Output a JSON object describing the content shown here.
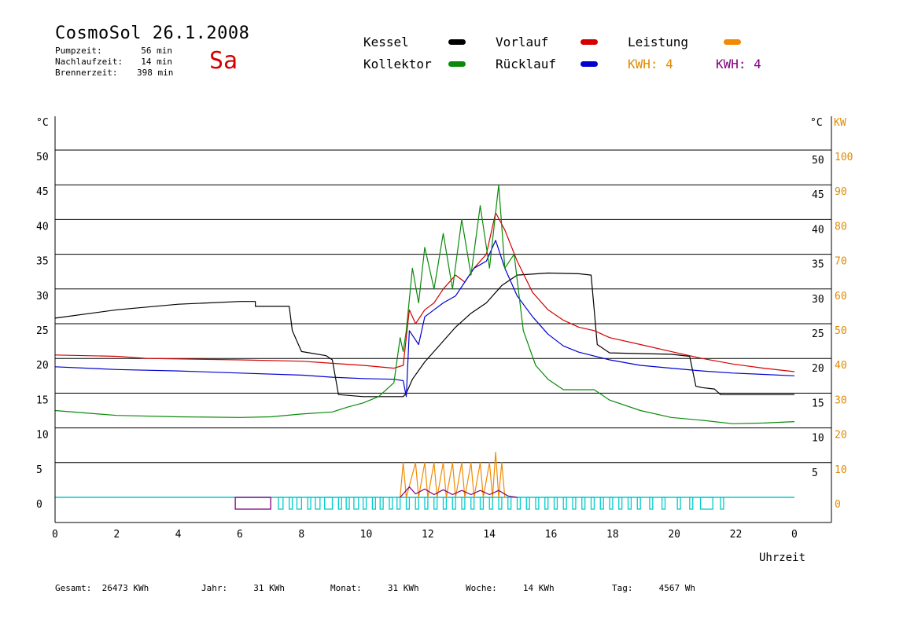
{
  "header": {
    "title": "CosmoSol 26.1.2008",
    "day": "Sa",
    "info": [
      {
        "label": "Pumpzeit:",
        "value": "56 min"
      },
      {
        "label": "Nachlaufzeit:",
        "value": "14 min"
      },
      {
        "label": "Brennerzeit:",
        "value": "398 min"
      }
    ]
  },
  "legend": {
    "kessel": "Kessel",
    "vorlauf": "Vorlauf",
    "leistung": "Leistung",
    "kollektor": "Kollektor",
    "ruecklauf": "Rücklauf",
    "kwh_orange": "KWH: 4",
    "kwh_purple": "KWH: 4"
  },
  "colors": {
    "kessel": "#000000",
    "vorlauf": "#d40000",
    "leistung": "#f08a00",
    "kollektor": "#0a8a0a",
    "ruecklauf": "#0000d0",
    "kwh_purple": "#800080",
    "pump": "#00cccc",
    "grid": "#000000",
    "kw_axis": "#e08a00"
  },
  "chart_data": {
    "type": "line",
    "xlabel": "Uhrzeit",
    "y_left_label": "°C",
    "y_right_label_c": "°C",
    "y_right_label_kw": "KW",
    "xlim": [
      0,
      24
    ],
    "ylim": [
      0,
      50
    ],
    "grid": true,
    "x_ticks": [
      "0",
      "2",
      "4",
      "6",
      "8",
      "10",
      "12",
      "14",
      "16",
      "18",
      "20",
      "22",
      "0"
    ],
    "y_ticks_left": [
      "0",
      "5",
      "10",
      "15",
      "20",
      "25",
      "30",
      "35",
      "40",
      "45",
      "50"
    ],
    "y_ticks_right_c": [
      "5",
      "10",
      "15",
      "20",
      "25",
      "30",
      "35",
      "40",
      "45",
      "50"
    ],
    "y_ticks_right_kw": [
      "0",
      "10",
      "20",
      "30",
      "40",
      "50",
      "60",
      "70",
      "80",
      "90",
      "100"
    ],
    "series": [
      {
        "name": "Kessel",
        "color": "#000000",
        "points": [
          [
            0,
            25.8
          ],
          [
            2,
            27
          ],
          [
            4,
            27.8
          ],
          [
            6,
            28.2
          ],
          [
            6.5,
            28.2
          ],
          [
            6.5,
            27.5
          ],
          [
            7.6,
            27.5
          ],
          [
            7.7,
            24
          ],
          [
            8,
            21
          ],
          [
            8.8,
            20.4
          ],
          [
            9,
            19.8
          ],
          [
            9.2,
            14.8
          ],
          [
            10,
            14.5
          ],
          [
            11.3,
            14.5
          ],
          [
            11.4,
            15
          ],
          [
            11.6,
            17
          ],
          [
            12,
            19.5
          ],
          [
            12.5,
            22
          ],
          [
            13,
            24.5
          ],
          [
            13.5,
            26.5
          ],
          [
            14,
            28
          ],
          [
            14.5,
            30.5
          ],
          [
            15,
            32
          ],
          [
            16,
            32.3
          ],
          [
            17,
            32.2
          ],
          [
            17.4,
            32
          ],
          [
            17.6,
            22
          ],
          [
            18,
            20.8
          ],
          [
            20,
            20.6
          ],
          [
            20.6,
            20.3
          ],
          [
            20.8,
            16
          ],
          [
            21,
            15.8
          ],
          [
            21.4,
            15.6
          ],
          [
            21.6,
            14.8
          ],
          [
            24,
            14.8
          ]
        ]
      },
      {
        "name": "Vorlauf",
        "color": "#d40000",
        "points": [
          [
            0,
            20.5
          ],
          [
            2,
            20.3
          ],
          [
            3,
            20
          ],
          [
            6,
            19.8
          ],
          [
            8,
            19.6
          ],
          [
            9,
            19.3
          ],
          [
            10,
            19
          ],
          [
            11,
            18.6
          ],
          [
            11.3,
            19
          ],
          [
            11.5,
            27
          ],
          [
            11.7,
            25
          ],
          [
            12,
            27
          ],
          [
            12.3,
            28
          ],
          [
            12.6,
            30
          ],
          [
            13,
            32
          ],
          [
            13.3,
            31
          ],
          [
            13.6,
            33
          ],
          [
            14,
            35
          ],
          [
            14.3,
            41
          ],
          [
            14.6,
            38.5
          ],
          [
            15,
            34
          ],
          [
            15.5,
            29.5
          ],
          [
            16,
            27
          ],
          [
            16.5,
            25.5
          ],
          [
            17,
            24.5
          ],
          [
            17.5,
            24
          ],
          [
            18,
            23
          ],
          [
            19,
            22
          ],
          [
            20,
            21
          ],
          [
            21,
            20
          ],
          [
            22,
            19.2
          ],
          [
            23,
            18.6
          ],
          [
            24,
            18.1
          ]
        ]
      },
      {
        "name": "Rücklauf",
        "color": "#0000d0",
        "points": [
          [
            0,
            18.8
          ],
          [
            2,
            18.4
          ],
          [
            4,
            18.2
          ],
          [
            6,
            17.9
          ],
          [
            8,
            17.6
          ],
          [
            9,
            17.3
          ],
          [
            10,
            17.1
          ],
          [
            11,
            17
          ],
          [
            11.3,
            16.8
          ],
          [
            11.4,
            14.5
          ],
          [
            11.5,
            24
          ],
          [
            11.8,
            22
          ],
          [
            12,
            26
          ],
          [
            12.3,
            27
          ],
          [
            12.6,
            28
          ],
          [
            13,
            29
          ],
          [
            13.3,
            31
          ],
          [
            13.6,
            33
          ],
          [
            14,
            34
          ],
          [
            14.3,
            37
          ],
          [
            14.6,
            33
          ],
          [
            15,
            29
          ],
          [
            15.5,
            26
          ],
          [
            16,
            23.5
          ],
          [
            16.5,
            21.8
          ],
          [
            17,
            20.9
          ],
          [
            18,
            19.8
          ],
          [
            19,
            19
          ],
          [
            20,
            18.6
          ],
          [
            21,
            18.2
          ],
          [
            22,
            17.9
          ],
          [
            23,
            17.7
          ],
          [
            24,
            17.5
          ]
        ]
      },
      {
        "name": "Kollektor",
        "color": "#0a8a0a",
        "points": [
          [
            0,
            12.5
          ],
          [
            2,
            11.8
          ],
          [
            4,
            11.6
          ],
          [
            6,
            11.5
          ],
          [
            7,
            11.6
          ],
          [
            8,
            12
          ],
          [
            9,
            12.3
          ],
          [
            9.5,
            13
          ],
          [
            10,
            13.6
          ],
          [
            10.5,
            14.5
          ],
          [
            11,
            16.5
          ],
          [
            11.2,
            23
          ],
          [
            11.3,
            21
          ],
          [
            11.4,
            24
          ],
          [
            11.6,
            33
          ],
          [
            11.8,
            28
          ],
          [
            12,
            36
          ],
          [
            12.3,
            30
          ],
          [
            12.6,
            38
          ],
          [
            12.9,
            30
          ],
          [
            13.2,
            40
          ],
          [
            13.5,
            32
          ],
          [
            13.8,
            42
          ],
          [
            14.1,
            33
          ],
          [
            14.4,
            45
          ],
          [
            14.6,
            33
          ],
          [
            14.9,
            35
          ],
          [
            15.2,
            24
          ],
          [
            15.6,
            19
          ],
          [
            16,
            17
          ],
          [
            16.5,
            15.5
          ],
          [
            17,
            15.5
          ],
          [
            17.5,
            15.5
          ],
          [
            18,
            14
          ],
          [
            19,
            12.5
          ],
          [
            20,
            11.5
          ],
          [
            21,
            11.1
          ],
          [
            22,
            10.6
          ],
          [
            23,
            10.7
          ],
          [
            24,
            10.9
          ]
        ]
      },
      {
        "name": "Leistung",
        "color": "#f08a00",
        "points": [
          [
            11.2,
            0
          ],
          [
            11.3,
            5
          ],
          [
            11.4,
            0
          ],
          [
            11.7,
            5
          ],
          [
            11.8,
            0
          ],
          [
            12,
            5
          ],
          [
            12.1,
            0
          ],
          [
            12.3,
            5
          ],
          [
            12.4,
            0
          ],
          [
            12.6,
            5
          ],
          [
            12.7,
            0
          ],
          [
            12.9,
            5
          ],
          [
            13,
            0
          ],
          [
            13.2,
            5
          ],
          [
            13.3,
            0
          ],
          [
            13.5,
            5
          ],
          [
            13.6,
            0
          ],
          [
            13.8,
            5
          ],
          [
            13.9,
            0
          ],
          [
            14.1,
            5
          ],
          [
            14.2,
            0
          ],
          [
            14.3,
            6.5
          ],
          [
            14.4,
            0
          ],
          [
            14.5,
            5
          ],
          [
            14.6,
            0
          ]
        ]
      },
      {
        "name": "KWH",
        "color": "#800080",
        "points": [
          [
            11.2,
            0
          ],
          [
            11.5,
            1.5
          ],
          [
            11.7,
            0.5
          ],
          [
            12,
            1.2
          ],
          [
            12.3,
            0.4
          ],
          [
            12.6,
            1.1
          ],
          [
            12.9,
            0.4
          ],
          [
            13.2,
            1
          ],
          [
            13.5,
            0.4
          ],
          [
            13.8,
            1
          ],
          [
            14.1,
            0.4
          ],
          [
            14.4,
            1
          ],
          [
            14.7,
            0.2
          ],
          [
            15,
            0
          ]
        ]
      }
    ],
    "pump_blocks": [
      [
        5.85,
        7.0
      ],
      [
        7.25,
        7.4
      ],
      [
        7.6,
        7.7
      ],
      [
        7.85,
        8.0
      ],
      [
        8.2,
        8.3
      ],
      [
        8.45,
        8.6
      ],
      [
        8.75,
        9.0
      ],
      [
        9.2,
        9.3
      ],
      [
        9.45,
        9.55
      ],
      [
        9.7,
        9.85
      ],
      [
        10.0,
        10.1
      ],
      [
        10.3,
        10.4
      ],
      [
        10.55,
        10.65
      ],
      [
        10.85,
        10.95
      ],
      [
        11.1,
        11.2
      ],
      [
        11.4,
        11.5
      ],
      [
        11.7,
        11.8
      ],
      [
        12.0,
        12.1
      ],
      [
        12.3,
        12.4
      ],
      [
        12.6,
        12.7
      ],
      [
        12.9,
        13.0
      ],
      [
        13.2,
        13.3
      ],
      [
        13.5,
        13.6
      ],
      [
        13.8,
        13.9
      ],
      [
        14.1,
        14.2
      ],
      [
        14.4,
        14.5
      ],
      [
        14.7,
        14.8
      ],
      [
        15.0,
        15.1
      ],
      [
        15.3,
        15.4
      ],
      [
        15.6,
        15.7
      ],
      [
        15.9,
        16.0
      ],
      [
        16.2,
        16.3
      ],
      [
        16.5,
        16.6
      ],
      [
        16.8,
        16.9
      ],
      [
        17.1,
        17.2
      ],
      [
        17.4,
        17.5
      ],
      [
        17.7,
        17.8
      ],
      [
        18.0,
        18.1
      ],
      [
        18.3,
        18.4
      ],
      [
        18.6,
        18.7
      ],
      [
        18.9,
        19.0
      ],
      [
        19.3,
        19.4
      ],
      [
        19.7,
        19.8
      ],
      [
        20.2,
        20.3
      ],
      [
        20.6,
        20.7
      ],
      [
        20.95,
        21.35
      ],
      [
        21.6,
        21.7
      ]
    ]
  },
  "footer": [
    {
      "label": "Gesamt:",
      "value": "26473 KWh"
    },
    {
      "label": "Jahr:",
      "value": "31 KWh"
    },
    {
      "label": "Monat:",
      "value": "31 KWh"
    },
    {
      "label": "Woche:",
      "value": "14 KWh"
    },
    {
      "label": "Tag:",
      "value": "4567 Wh"
    }
  ]
}
